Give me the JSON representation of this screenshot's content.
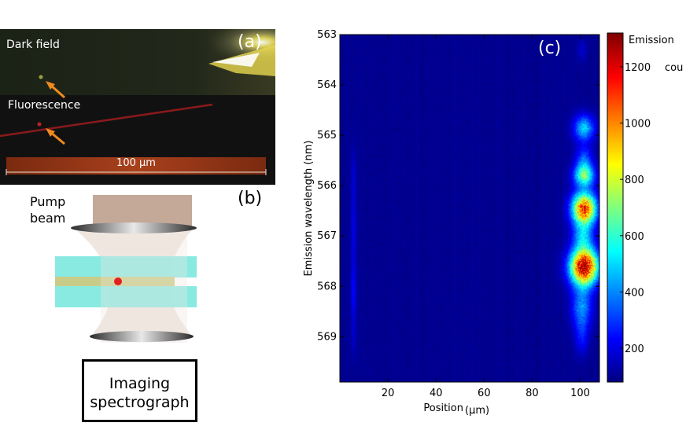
{
  "panel_a": {
    "label_dark_field": "Dark field",
    "label_fluorescence": "Fluorescence",
    "scale_bar_label": "100 μm",
    "panel_letter": "(a)"
  },
  "panel_b": {
    "panel_letter": "(b)",
    "pump_beam_line1": "Pump",
    "pump_beam_line2": "beam",
    "spectrograph_line1": "Imaging",
    "spectrograph_line2": "spectrograph"
  },
  "colors": {
    "bg_low": "#0a24c0",
    "pump_rect": "#c4a898",
    "waveguide": "#7fe8e0",
    "wire": "#c8cc88",
    "dot": "#e22020",
    "arrow": "#f08a1e"
  },
  "chart_data": {
    "type": "heatmap",
    "panel_letter": "(c)",
    "xlabel": "Position",
    "xlabel_unit": "(μm)",
    "ylabel": "Emission wavelength (nm)",
    "xlim": [
      0,
      108
    ],
    "ylim": [
      563,
      569.9
    ],
    "x_ticks": [
      20,
      40,
      60,
      80,
      100
    ],
    "y_ticks": [
      563,
      564,
      565,
      566,
      567,
      568,
      569
    ],
    "colorbar": {
      "title": "Emission",
      "unit_label": "counts",
      "range": [
        80,
        1320
      ],
      "ticks": [
        200,
        400,
        600,
        800,
        1000,
        1200
      ],
      "colormap": "jet"
    },
    "background_counts": 100,
    "emission_features": [
      {
        "x": 100.5,
        "y": 563.3,
        "peak": 170,
        "sx": 1.5,
        "sy": 0.15
      },
      {
        "x": 101.5,
        "y": 564.85,
        "peak": 480,
        "sx": 3.0,
        "sy": 0.18
      },
      {
        "x": 101.5,
        "y": 565.5,
        "peak": 350,
        "sx": 2.5,
        "sy": 0.2
      },
      {
        "x": 101.5,
        "y": 565.8,
        "peak": 620,
        "sx": 3.0,
        "sy": 0.15
      },
      {
        "x": 101.5,
        "y": 566.45,
        "peak": 1120,
        "sx": 3.5,
        "sy": 0.22
      },
      {
        "x": 101.0,
        "y": 567.0,
        "peak": 420,
        "sx": 3.0,
        "sy": 0.2
      },
      {
        "x": 101.5,
        "y": 567.6,
        "peak": 1300,
        "sx": 4.0,
        "sy": 0.25
      },
      {
        "x": 100.5,
        "y": 568.4,
        "peak": 400,
        "sx": 3.0,
        "sy": 0.3
      },
      {
        "x": 100.5,
        "y": 569.0,
        "peak": 240,
        "sx": 2.0,
        "sy": 0.25
      },
      {
        "x": 5.5,
        "y": 565.8,
        "peak": 170,
        "sx": 0.8,
        "sy": 0.4
      },
      {
        "x": 5.5,
        "y": 566.9,
        "peak": 200,
        "sx": 0.8,
        "sy": 0.5
      },
      {
        "x": 5.5,
        "y": 568.1,
        "peak": 230,
        "sx": 0.8,
        "sy": 0.4
      },
      {
        "x": 5.5,
        "y": 569.0,
        "peak": 160,
        "sx": 0.8,
        "sy": 0.3
      }
    ]
  }
}
